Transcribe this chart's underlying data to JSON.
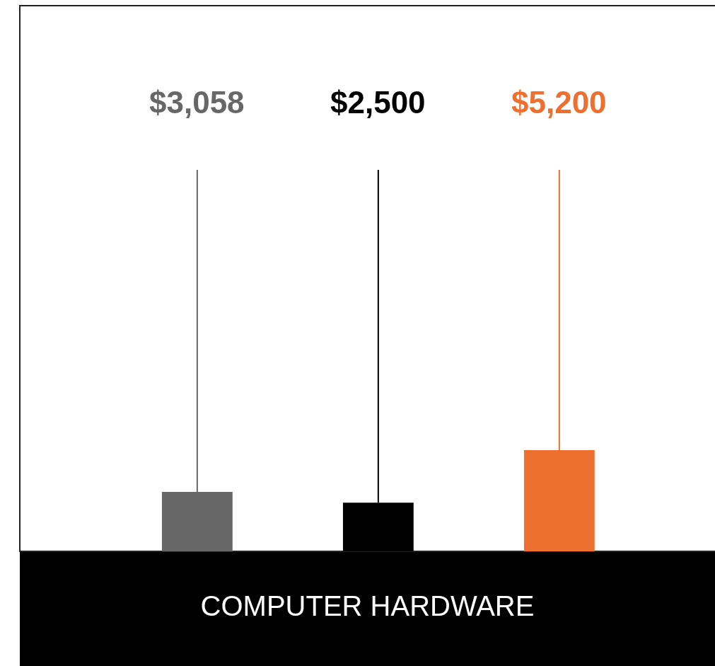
{
  "chart_data": {
    "type": "bar",
    "xlabel": "COMPUTER HARDWARE",
    "categories": [
      null,
      null,
      null
    ],
    "values": [
      3058,
      2500,
      5200
    ],
    "colors": [
      "#676767",
      "#000000",
      "#ed7030"
    ],
    "value_labels": [
      "$3,058",
      "$2,500",
      "$5,200"
    ],
    "tick_labels": false
  }
}
